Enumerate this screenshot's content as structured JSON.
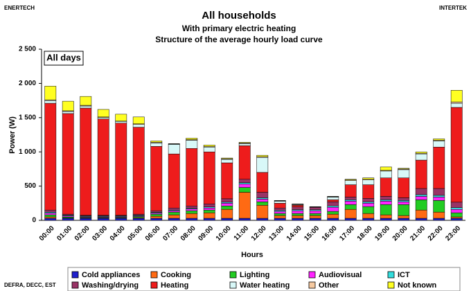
{
  "chart_data": {
    "type": "stacked-bar",
    "corner_left": "ENERTECH",
    "corner_right": "INTERTEK",
    "title": "All households",
    "subtitle": "With primary electric heating",
    "subtitle2": "Structure of the average hourly load curve",
    "annotation": "All days",
    "source": "DEFRA, DECC, EST",
    "y_label": "Power (W)",
    "x_label": "Hours",
    "categories": [
      "00:00",
      "01:00",
      "02:00",
      "03:00",
      "04:00",
      "05:00",
      "06:00",
      "07:00",
      "08:00",
      "09:00",
      "10:00",
      "11:00",
      "12:00",
      "13:00",
      "14:00",
      "15:00",
      "16:00",
      "17:00",
      "18:00",
      "19:00",
      "20:00",
      "21:00",
      "22:00",
      "23:00"
    ],
    "ylim": [
      0,
      2500
    ],
    "yticks": [
      0,
      {
        "value": 500,
        "label": "500"
      },
      {
        "value": 1000,
        "label": "1 000"
      },
      {
        "value": 1500,
        "label": "1 500"
      },
      {
        "value": 2000,
        "label": "2 000"
      },
      {
        "value": 2500,
        "label": "2 500"
      }
    ],
    "grid": false,
    "series": [
      {
        "name": "Cold appliances",
        "color": "#1f1fcc",
        "values": [
          30,
          30,
          30,
          30,
          30,
          30,
          30,
          30,
          30,
          30,
          30,
          30,
          30,
          30,
          30,
          30,
          30,
          30,
          30,
          30,
          30,
          30,
          30,
          30
        ]
      },
      {
        "name": "Cooking",
        "color": "#ff6a13",
        "values": [
          20,
          5,
          5,
          5,
          5,
          10,
          30,
          50,
          70,
          80,
          130,
          380,
          190,
          40,
          40,
          40,
          60,
          130,
          70,
          50,
          40,
          120,
          90,
          20
        ]
      },
      {
        "name": "Lighting",
        "color": "#22cc22",
        "values": [
          30,
          15,
          10,
          10,
          10,
          15,
          30,
          40,
          40,
          40,
          50,
          70,
          50,
          30,
          30,
          30,
          40,
          70,
          100,
          150,
          160,
          150,
          170,
          60
        ]
      },
      {
        "name": "Audiovisual",
        "color": "#ff22ff",
        "values": [
          25,
          15,
          10,
          10,
          10,
          10,
          15,
          20,
          25,
          30,
          40,
          50,
          40,
          30,
          40,
          40,
          60,
          50,
          50,
          50,
          40,
          50,
          50,
          50
        ]
      },
      {
        "name": "ICT",
        "color": "#33dddd",
        "values": [
          15,
          10,
          10,
          10,
          10,
          10,
          10,
          10,
          10,
          15,
          15,
          20,
          20,
          15,
          15,
          15,
          20,
          20,
          20,
          20,
          20,
          25,
          25,
          25
        ]
      },
      {
        "name": "Washing/drying",
        "color": "#993366",
        "values": [
          30,
          15,
          10,
          10,
          10,
          15,
          25,
          30,
          35,
          45,
          50,
          50,
          80,
          35,
          40,
          35,
          60,
          40,
          50,
          50,
          40,
          90,
          100,
          80
        ]
      },
      {
        "name": "Heating",
        "color": "#ee1c1c",
        "values": [
          1560,
          1470,
          1565,
          1405,
          1345,
          1270,
          940,
          790,
          840,
          760,
          525,
          490,
          290,
          70,
          25,
          0,
          30,
          180,
          200,
          270,
          290,
          415,
          605,
          1385
        ]
      },
      {
        "name": "Water heating",
        "color": "#d8f8f8",
        "values": [
          40,
          30,
          30,
          20,
          25,
          40,
          50,
          140,
          120,
          70,
          50,
          30,
          220,
          30,
          10,
          5,
          40,
          60,
          70,
          100,
          120,
          90,
          90,
          60
        ]
      },
      {
        "name": "Other",
        "color": "#f5c9a0",
        "values": [
          10,
          10,
          10,
          10,
          5,
          10,
          10,
          5,
          10,
          10,
          10,
          10,
          10,
          5,
          5,
          5,
          5,
          10,
          10,
          10,
          10,
          10,
          10,
          20
        ]
      },
      {
        "name": "Not known",
        "color": "#ffff22",
        "values": [
          200,
          140,
          130,
          110,
          100,
          100,
          20,
          5,
          20,
          20,
          10,
          10,
          20,
          5,
          5,
          0,
          5,
          10,
          20,
          50,
          10,
          20,
          20,
          170
        ]
      }
    ]
  }
}
